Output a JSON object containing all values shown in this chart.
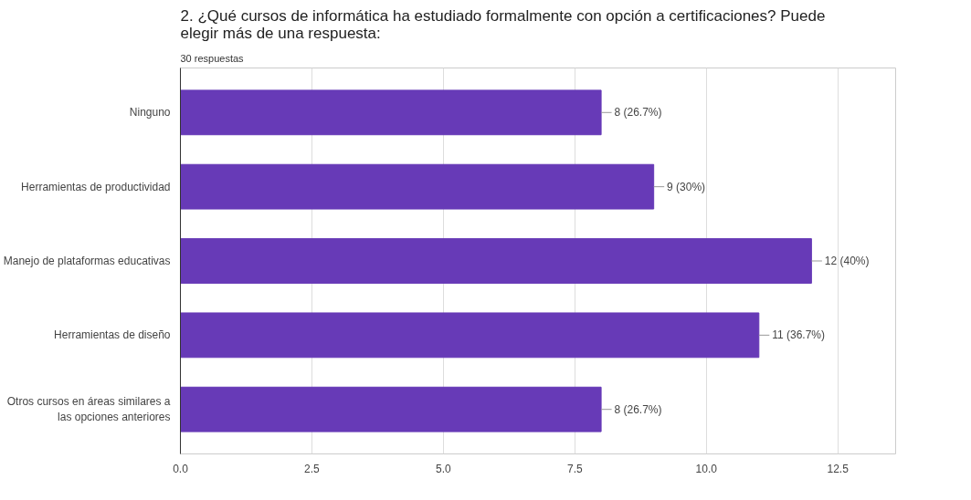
{
  "chart_data": {
    "type": "bar",
    "orientation": "horizontal",
    "title": "2. ¿Qué cursos de informática ha estudiado formalmente con opción a certificaciones? Puede elegir más de una respuesta:",
    "subtitle": "30 respuestas",
    "categories": [
      "Ninguno",
      "Herramientas de productividad",
      "Manejo de plataformas educativas",
      "Herramientas de diseño",
      "Otros cursos en áreas similares a las opciones anteriores"
    ],
    "values": [
      8,
      9,
      12,
      11,
      8
    ],
    "value_labels": [
      "8 (26.7%)",
      "9 (30%)",
      "12 (40%)",
      "11 (36.7%)",
      "8 (26.7%)"
    ],
    "color": "#673ab7",
    "xlim": [
      0,
      13.6
    ],
    "xticks": [
      {
        "value": 0,
        "label": "0.0"
      },
      2.5,
      {
        "value": 5,
        "label": "5.0"
      },
      7.5,
      {
        "value": 10,
        "label": "10.0"
      },
      12.5
    ],
    "grid": "x"
  }
}
